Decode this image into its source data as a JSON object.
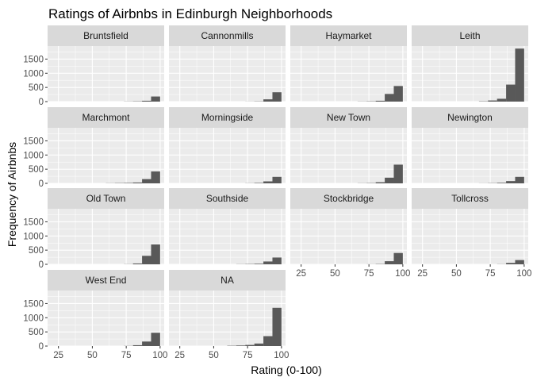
{
  "chart_data": {
    "type": "bar",
    "subtype": "faceted histogram",
    "title": "Ratings of Airbnbs in Edinburgh Neighborhoods",
    "xlabel": "Rating (0-100)",
    "ylabel": "Frequency of Airbnbs",
    "xlim": [
      17,
      103
    ],
    "ylim": [
      0,
      1960
    ],
    "x_ticks": [
      25,
      50,
      75,
      100
    ],
    "y_ticks": [
      0,
      500,
      1000,
      1500
    ],
    "bin_width": 6.67,
    "bins": [
      20,
      26.67,
      33.33,
      40,
      46.67,
      53.33,
      60,
      66.67,
      73.33,
      80,
      86.67,
      93.33
    ],
    "grid": true,
    "layout": {
      "columns": 4,
      "rows": 4
    },
    "colors": {
      "bar": "#595959",
      "panel": "#ebebeb",
      "strip": "#d9d9d9",
      "grid": "#ffffff"
    },
    "series": [
      {
        "name": "Bruntsfield",
        "values": [
          0,
          0,
          0,
          0,
          0,
          0,
          0,
          0,
          5,
          10,
          30,
          180
        ]
      },
      {
        "name": "Cannonmills",
        "values": [
          0,
          0,
          0,
          0,
          0,
          0,
          0,
          0,
          3,
          8,
          80,
          330
        ]
      },
      {
        "name": "Haymarket",
        "values": [
          0,
          0,
          0,
          0,
          0,
          0,
          0,
          5,
          10,
          30,
          270,
          550
        ]
      },
      {
        "name": "Leith",
        "values": [
          0,
          0,
          0,
          0,
          0,
          0,
          0,
          10,
          40,
          100,
          600,
          1870
        ]
      },
      {
        "name": "Marchmont",
        "values": [
          0,
          0,
          0,
          0,
          0,
          0,
          5,
          10,
          15,
          30,
          150,
          420
        ]
      },
      {
        "name": "Morningside",
        "values": [
          0,
          0,
          0,
          0,
          0,
          0,
          0,
          0,
          5,
          15,
          70,
          230
        ]
      },
      {
        "name": "New Town",
        "values": [
          0,
          0,
          0,
          0,
          0,
          0,
          0,
          5,
          10,
          40,
          200,
          660
        ]
      },
      {
        "name": "Newington",
        "values": [
          0,
          0,
          0,
          0,
          0,
          0,
          0,
          3,
          8,
          20,
          80,
          230
        ]
      },
      {
        "name": "Old Town",
        "values": [
          0,
          0,
          0,
          0,
          0,
          0,
          0,
          0,
          5,
          30,
          300,
          700
        ]
      },
      {
        "name": "Southside",
        "values": [
          0,
          0,
          0,
          0,
          0,
          0,
          0,
          5,
          10,
          20,
          100,
          240
        ]
      },
      {
        "name": "Stockbridge",
        "values": [
          0,
          0,
          0,
          0,
          0,
          0,
          0,
          0,
          3,
          10,
          110,
          400
        ]
      },
      {
        "name": "Tollcross",
        "values": [
          0,
          0,
          0,
          0,
          0,
          0,
          0,
          0,
          0,
          5,
          50,
          150
        ]
      },
      {
        "name": "West End",
        "values": [
          0,
          0,
          0,
          0,
          0,
          0,
          0,
          0,
          5,
          30,
          160,
          470
        ]
      },
      {
        "name": "NA",
        "values": [
          0,
          0,
          0,
          0,
          0,
          0,
          10,
          20,
          40,
          90,
          350,
          1350
        ]
      }
    ]
  }
}
